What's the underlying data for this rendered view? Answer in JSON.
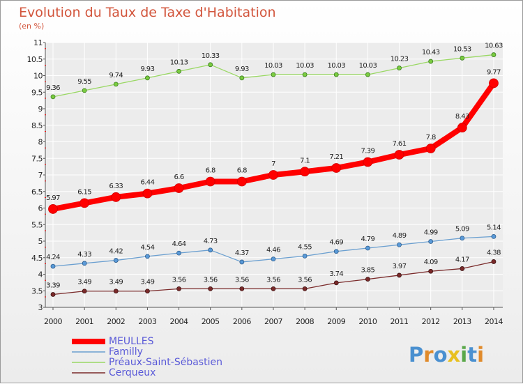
{
  "chart_data": {
    "type": "line",
    "title": "Evolution du Taux de Taxe d'Habitation",
    "subtitle": "(en %)",
    "xlabel": "",
    "ylabel": "",
    "x": [
      "2000",
      "2001",
      "2002",
      "2003",
      "2004",
      "2005",
      "2006",
      "2007",
      "2008",
      "2009",
      "2010",
      "2011",
      "2012",
      "2013",
      "2014"
    ],
    "ylim": [
      3,
      11
    ],
    "yticks": [
      "3",
      "3.5",
      "4",
      "4.5",
      "5",
      "5.5",
      "6",
      "6.5",
      "7",
      "7.5",
      "8",
      "8.5",
      "9",
      "9.5",
      "10",
      "10.5",
      "11"
    ],
    "grid": true,
    "legend_position": "bottom-left",
    "series": [
      {
        "name": "MEULLES",
        "color": "#ff0000",
        "values": [
          5.97,
          6.15,
          6.33,
          6.44,
          6.6,
          6.8,
          6.8,
          7,
          7.1,
          7.21,
          7.39,
          7.61,
          7.8,
          8.43,
          9.77
        ],
        "labels": [
          "5.97",
          "6.15",
          "6.33",
          "6.44",
          "6.6",
          "6.8",
          "6.8",
          "7",
          "7.1",
          "7.21",
          "7.39",
          "7.61",
          "7.8",
          "8.43",
          "9.77"
        ]
      },
      {
        "name": "Familly",
        "color": "#6a9fd0",
        "values": [
          4.24,
          4.33,
          4.42,
          4.54,
          4.64,
          4.73,
          4.37,
          4.46,
          4.55,
          4.69,
          4.79,
          4.89,
          4.99,
          5.09,
          5.14
        ],
        "labels": [
          "4.24",
          "4.33",
          "4.42",
          "4.54",
          "4.64",
          "4.73",
          "4.37",
          "4.46",
          "4.55",
          "4.69",
          "4.79",
          "4.89",
          "4.99",
          "5.09",
          "5.14"
        ]
      },
      {
        "name": "Préaux-Saint-Sébastien",
        "color": "#9ad864",
        "values": [
          9.36,
          9.55,
          9.74,
          9.93,
          10.13,
          10.33,
          9.93,
          10.03,
          10.03,
          10.03,
          10.03,
          10.23,
          10.43,
          10.53,
          10.63
        ],
        "labels": [
          "9.36",
          "9.55",
          "9.74",
          "9.93",
          "10.13",
          "10.33",
          "9.93",
          "10.03",
          "10.03",
          "10.03",
          "10.03",
          "10.23",
          "10.43",
          "10.53",
          "10.63"
        ]
      },
      {
        "name": "Cerqueux",
        "color": "#7a2a2a",
        "values": [
          3.39,
          3.49,
          3.49,
          3.49,
          3.56,
          3.56,
          3.56,
          3.56,
          3.56,
          3.74,
          3.85,
          3.97,
          4.09,
          4.17,
          4.38
        ],
        "labels": [
          "3.39",
          "3.49",
          "3.49",
          "3.49",
          "3.56",
          "3.56",
          "3.56",
          "3.56",
          "3.56",
          "3.74",
          "3.85",
          "3.97",
          "4.09",
          "4.17",
          "4.38"
        ]
      }
    ]
  },
  "logo": {
    "letters": [
      "P",
      "r",
      "o",
      "x",
      "i",
      "t",
      "i"
    ],
    "colors": [
      "#4a90d0",
      "#e08a2a",
      "#4a90d0",
      "#e8c020",
      "#5aa84a",
      "#4a90d0",
      "#e08a2a"
    ]
  }
}
